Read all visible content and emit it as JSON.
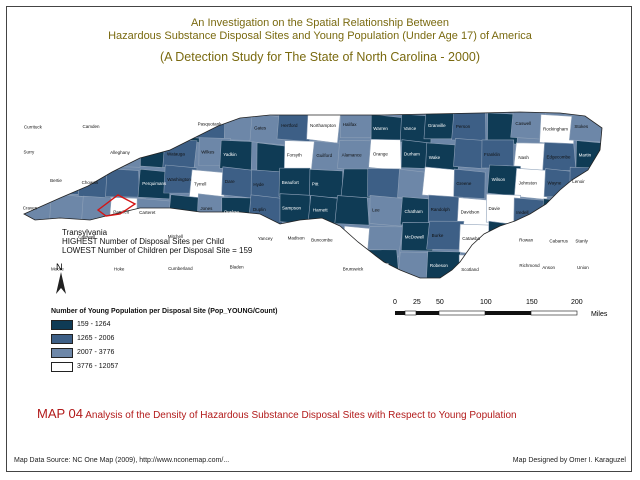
{
  "header": {
    "title_line1": "An Investigation on the Spatial Relationship Between",
    "title_line2": "Hazardous Substance Disposal Sites and Young Population (Under Age 17) of America",
    "subtitle": "(A Detection Study for The State of North Carolina - 2000)"
  },
  "annotation": {
    "line1": "Transylvania",
    "line2": "HIGHEST Number of Disposal Sites per Child",
    "line3": "LOWEST Number of Children per Disposal Site = 159"
  },
  "north_label": "N",
  "legend": {
    "title": "Number of Young Population per Disposal Site (Pop_YOUNG/Count)",
    "classes": [
      {
        "label": "159 - 1264",
        "color": "#0f3b55"
      },
      {
        "label": "1265 - 2006",
        "color": "#3d5f86"
      },
      {
        "label": "2007 - 3776",
        "color": "#6d87a8"
      },
      {
        "label": "3776 - 12057",
        "color": "#ffffff"
      }
    ]
  },
  "scale": {
    "ticks": [
      "0",
      "25",
      "50",
      "100",
      "150",
      "200"
    ],
    "unit": "Miles"
  },
  "map_title": {
    "prefix": "MAP 04",
    "text": "Analysis of the Density of Hazardous Substance Disposal Sites with Respect to Young Population"
  },
  "footer": {
    "source": "Map Data Source: NC One Map (2009), http://www.nconemap.com/...",
    "credit": "Map Designed by Omer I. Karaguzel"
  },
  "counties": [
    "Currituck",
    "Camden",
    "Pasquotank",
    "Gates",
    "Hertford",
    "Northampton",
    "Halifax",
    "Warren",
    "Vance",
    "Granville",
    "Person",
    "Caswell",
    "Rockingham",
    "Stokes",
    "Surry",
    "Alleghany",
    "Ashe",
    "Watauga",
    "Wilkes",
    "Yadkin",
    "Forsyth",
    "Guilford",
    "Alamance",
    "Orange",
    "Durham",
    "Wake",
    "Franklin",
    "Nash",
    "Edgecombe",
    "Martin",
    "Bertie",
    "Chowan",
    "Perquimans",
    "Washington",
    "Tyrrell",
    "Dare",
    "Hyde",
    "Beaufort",
    "Pitt",
    "Greene",
    "Wilson",
    "Johnston",
    "Wayne",
    "Lenoir",
    "Craven",
    "Pamlico",
    "Carteret",
    "Jones",
    "Onslow",
    "Duplin",
    "Sampson",
    "Harnett",
    "Lee",
    "Chatham",
    "Randolph",
    "Davidson",
    "Davie",
    "Iredell",
    "Alexander",
    "Caldwell",
    "Avery",
    "Mitchell",
    "Yancey",
    "Madison",
    "Buncombe",
    "McDowell",
    "Burke",
    "Catawba",
    "Rowan",
    "Cabarrus",
    "Stanly",
    "Montgomery",
    "Moore",
    "Hoke",
    "Cumberland",
    "Bladen",
    "Pender",
    "New Hanover",
    "Brunswick",
    "Columbus",
    "Robeson",
    "Scotland",
    "Richmond",
    "Anson",
    "Union",
    "Mecklenburg",
    "Gaston",
    "Lincoln",
    "Cleveland",
    "Rutherford",
    "Polk",
    "Henderson",
    "Transylvania",
    "Haywood",
    "Jackson",
    "Swain",
    "Macon",
    "Graham",
    "Clay",
    "Cherokee"
  ]
}
